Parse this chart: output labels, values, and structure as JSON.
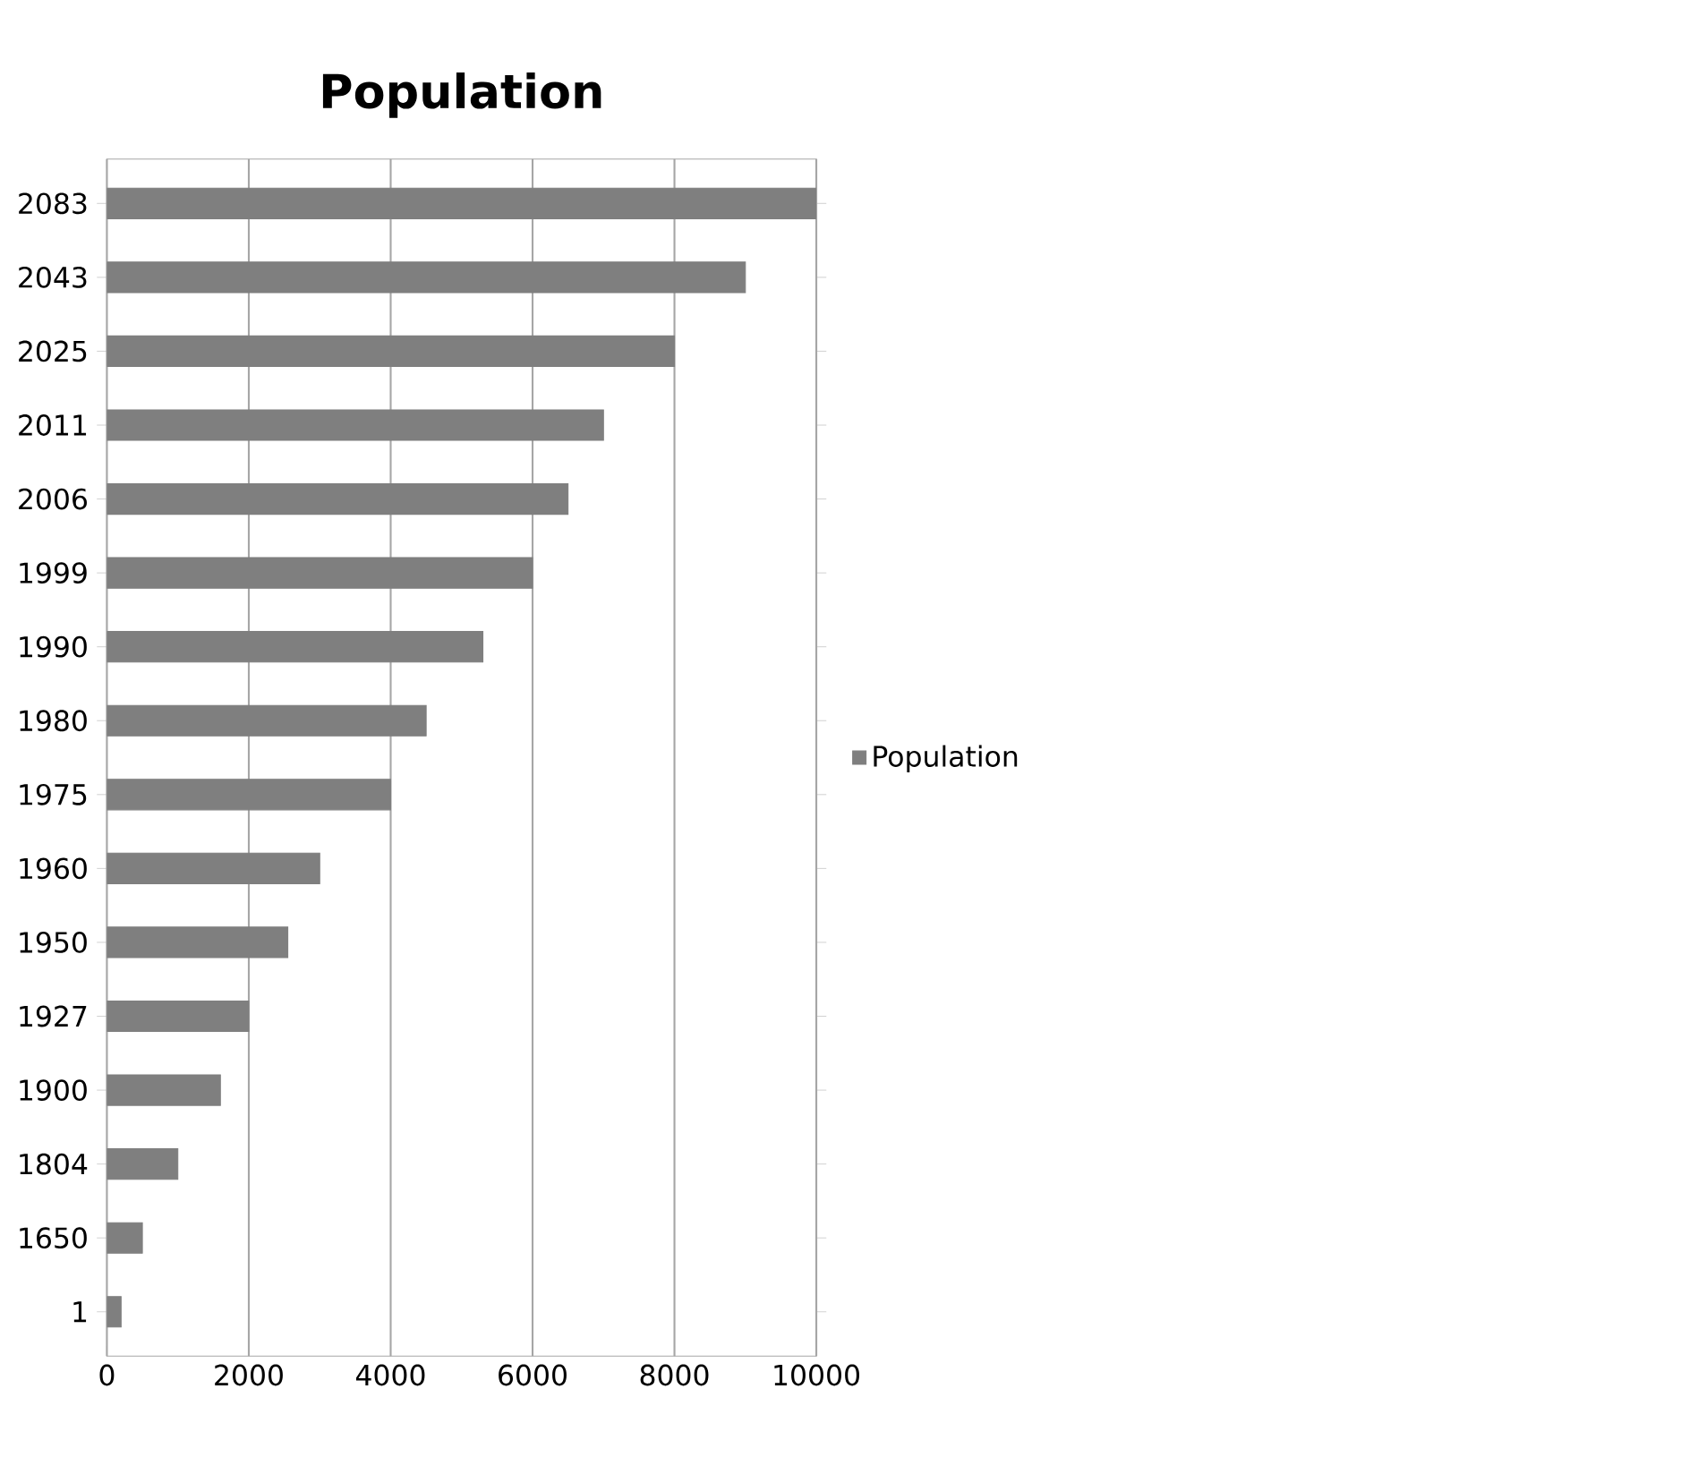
{
  "chart_data": {
    "type": "bar",
    "orientation": "horizontal",
    "title": "Population",
    "categories": [
      "2083",
      "2043",
      "2025",
      "2011",
      "2006",
      "1999",
      "1990",
      "1980",
      "1975",
      "1960",
      "1950",
      "1927",
      "1900",
      "1804",
      "1650",
      "1"
    ],
    "series": [
      {
        "name": "Population",
        "color": "#7f7f7f",
        "values": [
          10000,
          9000,
          8000,
          7000,
          6500,
          6000,
          5300,
          4500,
          4000,
          3000,
          2550,
          2000,
          1600,
          1000,
          500,
          200
        ]
      }
    ],
    "xlim": [
      0,
      10000
    ],
    "xticks": [
      0,
      2000,
      4000,
      6000,
      8000,
      10000
    ],
    "grid": "x",
    "legend": "right"
  }
}
